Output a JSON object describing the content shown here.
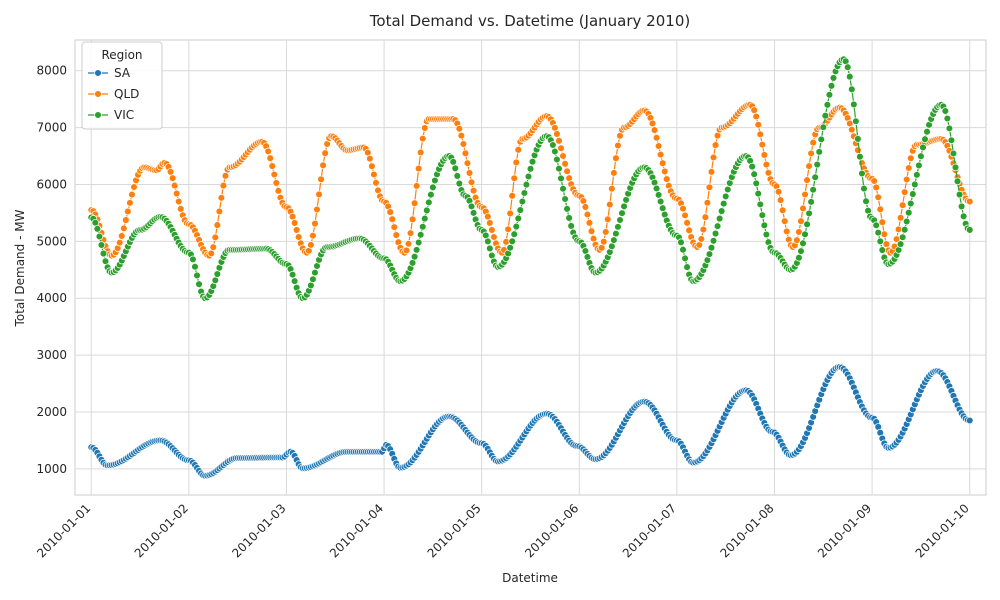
{
  "chart_data": {
    "type": "line",
    "title": "Total Demand vs. Datetime (January 2010)",
    "xlabel": "Datetime",
    "ylabel": "Total Demand - MW",
    "x_range": [
      "2009-12-31T20:00",
      "2010-01-10T04:00"
    ],
    "ylim": [
      540,
      8540
    ],
    "x_ticks": [
      "2010-01-01",
      "2010-01-02",
      "2010-01-03",
      "2010-01-04",
      "2010-01-05",
      "2010-01-06",
      "2010-01-07",
      "2010-01-08",
      "2010-01-09",
      "2010-01-10"
    ],
    "y_ticks": [
      1000,
      2000,
      3000,
      4000,
      5000,
      6000,
      7000,
      8000
    ],
    "grid": true,
    "marker": "circle",
    "sampling": "half-hourly",
    "legend": {
      "title": "Region",
      "placement": "top-left"
    },
    "series": [
      {
        "name": "SA",
        "color": "#1f77b4",
        "keypoints": [
          [
            "2010-01-01T00:00",
            1380
          ],
          [
            "2010-01-01T04:00",
            1060
          ],
          [
            "2010-01-01T17:00",
            1500
          ],
          [
            "2010-01-02T00:00",
            1150
          ],
          [
            "2010-01-02T04:00",
            880
          ],
          [
            "2010-01-02T12:00",
            1190
          ],
          [
            "2010-01-02T23:00",
            1200
          ],
          [
            "2010-01-03T01:00",
            1300
          ],
          [
            "2010-01-03T04:00",
            1010
          ],
          [
            "2010-01-03T15:00",
            1300
          ],
          [
            "2010-01-03T23:30",
            1300
          ],
          [
            "2010-01-04T00:30",
            1420
          ],
          [
            "2010-01-04T04:00",
            1020
          ],
          [
            "2010-01-04T16:00",
            1920
          ],
          [
            "2010-01-05T00:00",
            1450
          ],
          [
            "2010-01-05T04:00",
            1130
          ],
          [
            "2010-01-05T16:00",
            1970
          ],
          [
            "2010-01-05T23:30",
            1400
          ],
          [
            "2010-01-06T04:00",
            1170
          ],
          [
            "2010-01-06T16:00",
            2180
          ],
          [
            "2010-01-07T00:00",
            1500
          ],
          [
            "2010-01-07T04:00",
            1110
          ],
          [
            "2010-01-07T17:00",
            2380
          ],
          [
            "2010-01-07T23:30",
            1650
          ],
          [
            "2010-01-08T04:00",
            1240
          ],
          [
            "2010-01-08T16:00",
            2790
          ],
          [
            "2010-01-09T00:00",
            1900
          ],
          [
            "2010-01-09T04:00",
            1370
          ],
          [
            "2010-01-09T16:00",
            2720
          ],
          [
            "2010-01-10T00:00",
            1850
          ]
        ]
      },
      {
        "name": "QLD",
        "color": "#ff7f0e",
        "keypoints": [
          [
            "2010-01-01T00:00",
            5550
          ],
          [
            "2010-01-01T05:00",
            4750
          ],
          [
            "2010-01-01T13:00",
            6300
          ],
          [
            "2010-01-01T16:00",
            6250
          ],
          [
            "2010-01-01T18:00",
            6380
          ],
          [
            "2010-01-02T00:00",
            5300
          ],
          [
            "2010-01-02T05:00",
            4750
          ],
          [
            "2010-01-02T10:00",
            6300
          ],
          [
            "2010-01-02T18:00",
            6750
          ],
          [
            "2010-01-03T00:00",
            5600
          ],
          [
            "2010-01-03T05:00",
            4800
          ],
          [
            "2010-01-03T11:00",
            6850
          ],
          [
            "2010-01-03T15:00",
            6600
          ],
          [
            "2010-01-03T19:00",
            6650
          ],
          [
            "2010-01-04T00:00",
            5700
          ],
          [
            "2010-01-04T05:00",
            4800
          ],
          [
            "2010-01-04T11:00",
            7150
          ],
          [
            "2010-01-04T17:00",
            7150
          ],
          [
            "2010-01-05T00:00",
            5600
          ],
          [
            "2010-01-05T05:00",
            4800
          ],
          [
            "2010-01-05T10:00",
            6800
          ],
          [
            "2010-01-05T16:00",
            7200
          ],
          [
            "2010-01-06T00:00",
            5800
          ],
          [
            "2010-01-06T05:00",
            4850
          ],
          [
            "2010-01-06T11:00",
            7000
          ],
          [
            "2010-01-06T16:00",
            7300
          ],
          [
            "2010-01-07T00:00",
            5750
          ],
          [
            "2010-01-07T05:00",
            4900
          ],
          [
            "2010-01-07T11:00",
            7000
          ],
          [
            "2010-01-07T18:00",
            7400
          ],
          [
            "2010-01-08T00:00",
            6000
          ],
          [
            "2010-01-08T04:30",
            4900
          ],
          [
            "2010-01-08T11:00",
            7000
          ],
          [
            "2010-01-08T16:00",
            7350
          ],
          [
            "2010-01-09T00:00",
            6100
          ],
          [
            "2010-01-09T04:30",
            4800
          ],
          [
            "2010-01-09T11:00",
            6700
          ],
          [
            "2010-01-09T17:00",
            6800
          ],
          [
            "2010-01-10T00:00",
            5700
          ]
        ]
      },
      {
        "name": "VIC",
        "color": "#2ca02c",
        "keypoints": [
          [
            "2010-01-01T00:00",
            5420
          ],
          [
            "2010-01-01T05:00",
            4450
          ],
          [
            "2010-01-01T12:00",
            5200
          ],
          [
            "2010-01-01T17:00",
            5430
          ],
          [
            "2010-01-02T00:00",
            4800
          ],
          [
            "2010-01-02T04:00",
            4000
          ],
          [
            "2010-01-02T10:00",
            4850
          ],
          [
            "2010-01-02T19:00",
            4870
          ],
          [
            "2010-01-03T00:00",
            4600
          ],
          [
            "2010-01-03T04:00",
            4000
          ],
          [
            "2010-01-03T10:00",
            4900
          ],
          [
            "2010-01-03T18:00",
            5050
          ],
          [
            "2010-01-04T00:00",
            4700
          ],
          [
            "2010-01-04T04:00",
            4300
          ],
          [
            "2010-01-04T16:00",
            6500
          ],
          [
            "2010-01-04T20:00",
            5800
          ],
          [
            "2010-01-05T00:00",
            5200
          ],
          [
            "2010-01-05T04:00",
            4550
          ],
          [
            "2010-01-05T16:00",
            6850
          ],
          [
            "2010-01-06T00:00",
            5000
          ],
          [
            "2010-01-06T04:00",
            4450
          ],
          [
            "2010-01-06T16:00",
            6300
          ],
          [
            "2010-01-07T00:00",
            5100
          ],
          [
            "2010-01-07T04:00",
            4300
          ],
          [
            "2010-01-07T17:00",
            6500
          ],
          [
            "2010-01-08T00:00",
            4800
          ],
          [
            "2010-01-08T04:00",
            4500
          ],
          [
            "2010-01-08T17:00",
            8200
          ],
          [
            "2010-01-09T00:00",
            5400
          ],
          [
            "2010-01-09T04:00",
            4600
          ],
          [
            "2010-01-09T17:00",
            7400
          ],
          [
            "2010-01-10T00:00",
            5200
          ]
        ]
      }
    ]
  }
}
